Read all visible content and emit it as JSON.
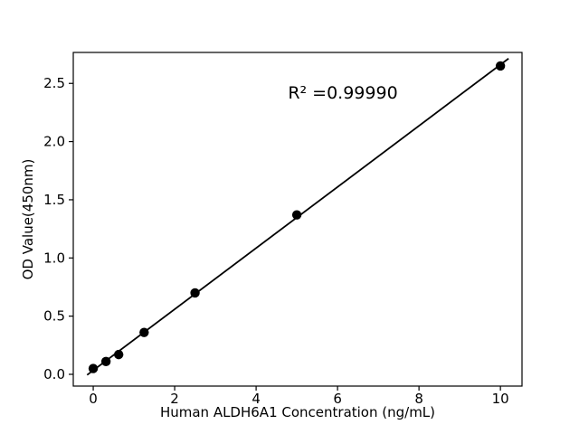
{
  "chart_data": {
    "type": "scatter",
    "title": "",
    "xlabel": "Human ALDH6A1 Concentration (ng/mL)",
    "ylabel": "OD Value(450nm)",
    "x": [
      0,
      0.313,
      0.625,
      1.25,
      2.5,
      5,
      10
    ],
    "y": [
      0.05,
      0.11,
      0.17,
      0.36,
      0.7,
      1.37,
      2.65
    ],
    "trendline": {
      "slope": 0.2627,
      "intercept": 0.034,
      "r_squared_label": "R² =0.99990"
    },
    "xticks": [
      0,
      2,
      4,
      6,
      8,
      10
    ],
    "xtick_labels": [
      "0",
      "2",
      "4",
      "6",
      "8",
      "10"
    ],
    "yticks": [
      0.0,
      0.5,
      1.0,
      1.5,
      2.0,
      2.5
    ],
    "ytick_labels": [
      "0.0",
      "0.5",
      "1.0",
      "1.5",
      "2.0",
      "2.5"
    ],
    "xlim": [
      -0.49,
      10.53
    ],
    "ylim": [
      -0.101,
      2.766
    ],
    "grid": false,
    "legend": "none",
    "marker_color": "#000000",
    "line_color": "#000000",
    "frame_color": "#000000",
    "background": "#ffffff"
  }
}
